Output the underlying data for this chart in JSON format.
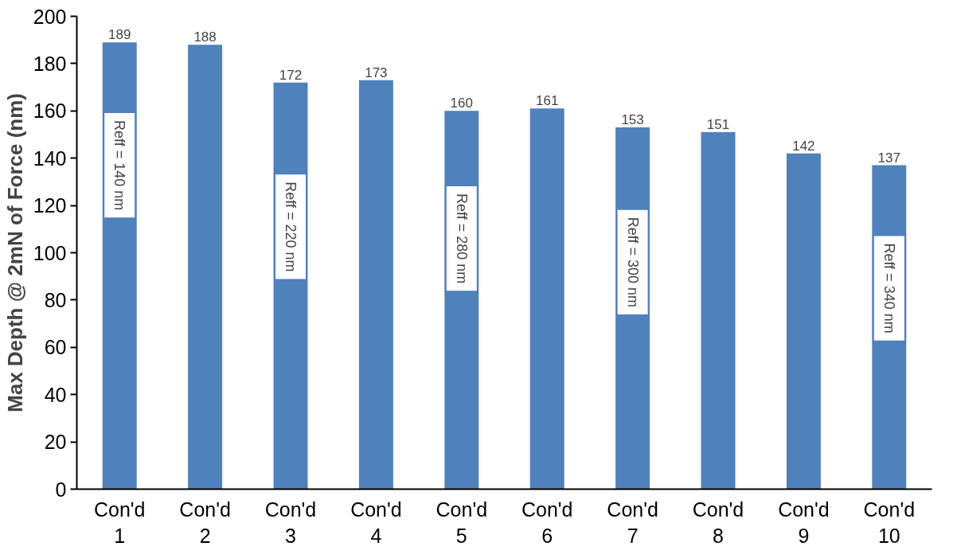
{
  "chart_data": {
    "type": "bar",
    "ylabel": "Max Depth @ 2mN of Force (nm)",
    "categories": [
      "Con'd\n1",
      "Con'd\n2",
      "Con'd\n3",
      "Con'd\n4",
      "Con'd\n5",
      "Con'd\n6",
      "Con'd\n7",
      "Con'd\n8",
      "Con'd\n9",
      "Con'd\n10"
    ],
    "values": [
      189,
      188,
      172,
      173,
      160,
      161,
      153,
      151,
      142,
      137
    ],
    "color": "#4f81bd",
    "data_labels": true,
    "grid": false,
    "ylim": [
      0,
      200
    ],
    "yticks": [
      0,
      20,
      40,
      60,
      80,
      100,
      120,
      140,
      160,
      180,
      200
    ],
    "annotations": [
      "Reff = 140 nm",
      "Reff = 220 nm",
      "Reff = 280 nm",
      "Reff = 300 nm",
      "Reff = 340 nm"
    ]
  }
}
